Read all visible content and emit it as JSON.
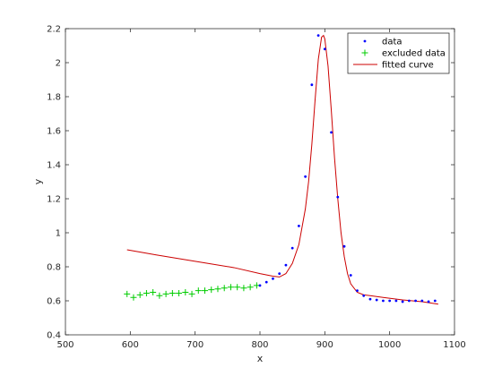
{
  "chart_data": {
    "type": "scatter",
    "xlabel": "x",
    "ylabel": "y",
    "xlim": [
      500,
      1100
    ],
    "ylim": [
      0.4,
      2.2
    ],
    "xticks": [
      500,
      600,
      700,
      800,
      900,
      1000,
      1100
    ],
    "yticks": [
      0.4,
      0.6,
      0.8,
      1,
      1.2,
      1.4,
      1.6,
      1.8,
      2,
      2.2
    ],
    "grid": false,
    "legend_position": "top-right",
    "colors": {
      "data": "#0000ff",
      "excluded": "#00cc00",
      "fit": "#cc0000",
      "axis": "#262626"
    },
    "series": [
      {
        "name": "data",
        "marker": "dot",
        "x": [
          800,
          810,
          820,
          830,
          840,
          850,
          860,
          870,
          880,
          890,
          900,
          910,
          920,
          930,
          940,
          950,
          960,
          970,
          980,
          990,
          1000,
          1010,
          1020,
          1030,
          1040,
          1050,
          1060,
          1070
        ],
        "y": [
          0.69,
          0.71,
          0.73,
          0.76,
          0.81,
          0.91,
          1.04,
          1.33,
          1.87,
          2.16,
          2.08,
          1.59,
          1.21,
          0.92,
          0.75,
          0.66,
          0.63,
          0.61,
          0.605,
          0.6,
          0.6,
          0.6,
          0.595,
          0.6,
          0.6,
          0.6,
          0.595,
          0.6
        ]
      },
      {
        "name": "excluded data",
        "marker": "plus",
        "x": [
          595,
          605,
          615,
          625,
          635,
          645,
          655,
          665,
          675,
          685,
          695,
          705,
          715,
          725,
          735,
          745,
          755,
          765,
          775,
          785,
          795
        ],
        "y": [
          0.64,
          0.62,
          0.635,
          0.645,
          0.65,
          0.63,
          0.64,
          0.645,
          0.645,
          0.65,
          0.64,
          0.66,
          0.66,
          0.665,
          0.67,
          0.675,
          0.68,
          0.68,
          0.675,
          0.68,
          0.69
        ]
      },
      {
        "name": "fitted curve",
        "line": true,
        "x": [
          595,
          640,
          680,
          720,
          760,
          800,
          820,
          830,
          840,
          850,
          860,
          870,
          875,
          880,
          885,
          890,
          895,
          898,
          900,
          905,
          910,
          915,
          920,
          925,
          930,
          935,
          940,
          950,
          960,
          970,
          990,
          1020,
          1050,
          1075
        ],
        "y": [
          0.9,
          0.87,
          0.845,
          0.82,
          0.795,
          0.76,
          0.745,
          0.74,
          0.76,
          0.82,
          0.93,
          1.14,
          1.3,
          1.52,
          1.78,
          2.02,
          2.15,
          2.16,
          2.14,
          1.98,
          1.72,
          1.44,
          1.2,
          1.0,
          0.86,
          0.76,
          0.7,
          0.65,
          0.635,
          0.63,
          0.62,
          0.605,
          0.595,
          0.58
        ]
      }
    ]
  }
}
